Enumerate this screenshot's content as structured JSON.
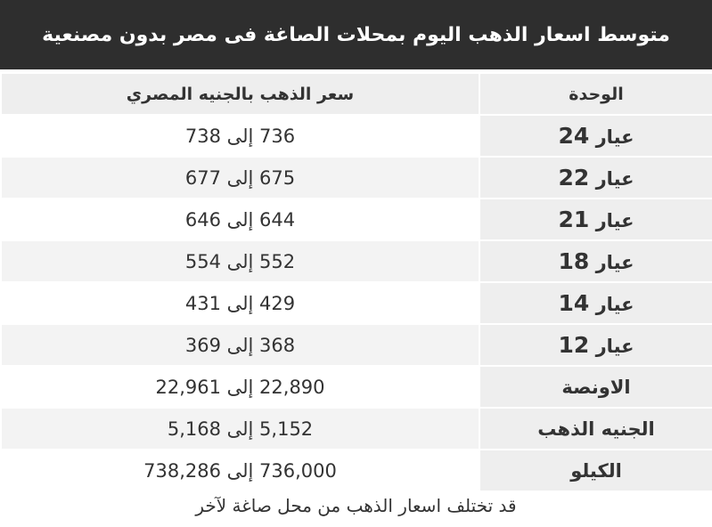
{
  "title": "متوسط اسعار الذهب اليوم بمحلات الصاغة فى مصر بدون مصنعية",
  "table": {
    "headers": {
      "unit": "الوحدة",
      "price": "سعر الذهب بالجنيه المصري"
    },
    "rows": [
      {
        "unit_label": "عيار",
        "unit_num": "24",
        "price": "736 إلى 738"
      },
      {
        "unit_label": "عيار",
        "unit_num": "22",
        "price": "675 إلى 677"
      },
      {
        "unit_label": "عيار",
        "unit_num": "21",
        "price": "644 إلى 646"
      },
      {
        "unit_label": "عيار",
        "unit_num": "18",
        "price": "552 إلى 554"
      },
      {
        "unit_label": "عيار",
        "unit_num": "14",
        "price": "429 إلى 431"
      },
      {
        "unit_label": "عيار",
        "unit_num": "12",
        "price": "368 إلى 369"
      },
      {
        "unit_label": "الاونصة",
        "unit_num": "",
        "price": "22,890 إلى 22,961"
      },
      {
        "unit_label": "الجنيه الذهب",
        "unit_num": "",
        "price": "5,152 إلى 5,168"
      },
      {
        "unit_label": "الكيلو",
        "unit_num": "",
        "price": "736,000 إلى 738,286"
      }
    ]
  },
  "footer": "قد تختلف اسعار الذهب من محل صاغة لآخر",
  "colors": {
    "title_bg": "#2e2e2e",
    "unit_bg": "#eeeeee",
    "alt_row_bg": "#f3f3f3"
  }
}
